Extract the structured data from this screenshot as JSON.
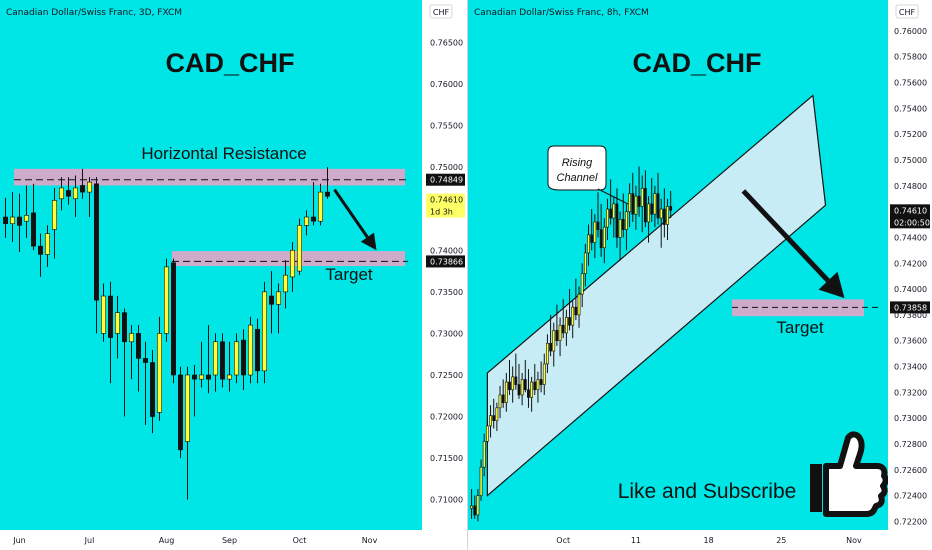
{
  "colors": {
    "bg": "#00e5e5",
    "bull": "#ffff33",
    "bear": "#111111",
    "zone": "#d9a8c8",
    "channel": "#c8ecf6",
    "label_bg": "#111111",
    "current_bg": "#ffff66",
    "axis_bg": "#ffffff"
  },
  "chart_data": [
    {
      "type": "candlestick",
      "header": "Canadian Dollar/Swiss Franc, 3D, FXCM",
      "currency": "CHF",
      "title": "CAD_CHF",
      "ylim": [
        0.709,
        0.7665
      ],
      "y_ticks": [
        "0.76500",
        "0.76000",
        "0.75500",
        "0.75000",
        "0.74500",
        "0.74000",
        "0.73500",
        "0.73000",
        "0.72500",
        "0.72000",
        "0.71500",
        "0.71000"
      ],
      "x_labels": [
        {
          "label": "Jun",
          "index": 2
        },
        {
          "label": "Jul",
          "index": 12
        },
        {
          "label": "Aug",
          "index": 23
        },
        {
          "label": "Sep",
          "index": 32
        },
        {
          "label": "Oct",
          "index": 42
        },
        {
          "label": "Nov",
          "index": 52
        }
      ],
      "n_slots": 58,
      "annotations": {
        "resistance_label": "Horizontal Resistance",
        "resistance_level": 0.74849,
        "resistance_price": "0.74849",
        "target_label": "Target",
        "target_level": 0.73866,
        "target_price": "0.73866",
        "current_price": "0.74610",
        "current_countdown": "1d 3h"
      },
      "zones": [
        {
          "name": "resistance",
          "y_top": 0.7498,
          "y_bottom": 0.7478
        },
        {
          "name": "target",
          "y_top": 0.7399,
          "y_bottom": 0.7381
        }
      ],
      "arrow": {
        "from": [
          47,
          0.7473
        ],
        "to": [
          53,
          0.74
        ]
      },
      "candles": [
        {
          "i": 0,
          "o": 0.744,
          "h": 0.7463,
          "l": 0.7415,
          "c": 0.7432
        },
        {
          "i": 1,
          "o": 0.7432,
          "h": 0.747,
          "l": 0.741,
          "c": 0.744
        },
        {
          "i": 2,
          "o": 0.744,
          "h": 0.7468,
          "l": 0.7398,
          "c": 0.743
        },
        {
          "i": 3,
          "o": 0.7435,
          "h": 0.7478,
          "l": 0.7415,
          "c": 0.7442
        },
        {
          "i": 4,
          "o": 0.7445,
          "h": 0.748,
          "l": 0.74,
          "c": 0.7405
        },
        {
          "i": 5,
          "o": 0.7405,
          "h": 0.742,
          "l": 0.7368,
          "c": 0.7395
        },
        {
          "i": 6,
          "o": 0.7395,
          "h": 0.743,
          "l": 0.738,
          "c": 0.742
        },
        {
          "i": 7,
          "o": 0.7425,
          "h": 0.7475,
          "l": 0.739,
          "c": 0.746
        },
        {
          "i": 8,
          "o": 0.7462,
          "h": 0.7488,
          "l": 0.7448,
          "c": 0.7475
        },
        {
          "i": 9,
          "o": 0.7472,
          "h": 0.7488,
          "l": 0.7455,
          "c": 0.7465
        },
        {
          "i": 10,
          "o": 0.7462,
          "h": 0.749,
          "l": 0.744,
          "c": 0.7475
        },
        {
          "i": 11,
          "o": 0.7478,
          "h": 0.7498,
          "l": 0.7462,
          "c": 0.747
        },
        {
          "i": 12,
          "o": 0.747,
          "h": 0.7488,
          "l": 0.744,
          "c": 0.7482
        },
        {
          "i": 13,
          "o": 0.748,
          "h": 0.7488,
          "l": 0.73,
          "c": 0.734
        },
        {
          "i": 14,
          "o": 0.73,
          "h": 0.736,
          "l": 0.729,
          "c": 0.7345
        },
        {
          "i": 15,
          "o": 0.7345,
          "h": 0.7362,
          "l": 0.724,
          "c": 0.7295
        },
        {
          "i": 16,
          "o": 0.73,
          "h": 0.7345,
          "l": 0.727,
          "c": 0.7325
        },
        {
          "i": 17,
          "o": 0.7325,
          "h": 0.733,
          "l": 0.72,
          "c": 0.729
        },
        {
          "i": 18,
          "o": 0.729,
          "h": 0.731,
          "l": 0.7245,
          "c": 0.73
        },
        {
          "i": 19,
          "o": 0.73,
          "h": 0.731,
          "l": 0.723,
          "c": 0.727
        },
        {
          "i": 20,
          "o": 0.727,
          "h": 0.729,
          "l": 0.719,
          "c": 0.7265
        },
        {
          "i": 21,
          "o": 0.7265,
          "h": 0.728,
          "l": 0.718,
          "c": 0.72
        },
        {
          "i": 22,
          "o": 0.7205,
          "h": 0.732,
          "l": 0.7195,
          "c": 0.73
        },
        {
          "i": 23,
          "o": 0.73,
          "h": 0.739,
          "l": 0.729,
          "c": 0.738
        },
        {
          "i": 24,
          "o": 0.7385,
          "h": 0.739,
          "l": 0.724,
          "c": 0.725
        },
        {
          "i": 25,
          "o": 0.725,
          "h": 0.726,
          "l": 0.715,
          "c": 0.716
        },
        {
          "i": 26,
          "o": 0.717,
          "h": 0.726,
          "l": 0.71,
          "c": 0.725
        },
        {
          "i": 27,
          "o": 0.725,
          "h": 0.7262,
          "l": 0.72,
          "c": 0.7245
        },
        {
          "i": 28,
          "o": 0.7245,
          "h": 0.729,
          "l": 0.7235,
          "c": 0.725
        },
        {
          "i": 29,
          "o": 0.725,
          "h": 0.731,
          "l": 0.7228,
          "c": 0.7245
        },
        {
          "i": 30,
          "o": 0.725,
          "h": 0.73,
          "l": 0.723,
          "c": 0.729
        },
        {
          "i": 31,
          "o": 0.729,
          "h": 0.73,
          "l": 0.7235,
          "c": 0.7245
        },
        {
          "i": 32,
          "o": 0.7245,
          "h": 0.729,
          "l": 0.723,
          "c": 0.725
        },
        {
          "i": 33,
          "o": 0.725,
          "h": 0.73,
          "l": 0.724,
          "c": 0.729
        },
        {
          "i": 34,
          "o": 0.7292,
          "h": 0.7305,
          "l": 0.7232,
          "c": 0.725
        },
        {
          "i": 35,
          "o": 0.725,
          "h": 0.732,
          "l": 0.724,
          "c": 0.731
        },
        {
          "i": 36,
          "o": 0.7305,
          "h": 0.7318,
          "l": 0.724,
          "c": 0.7255
        },
        {
          "i": 37,
          "o": 0.7255,
          "h": 0.7362,
          "l": 0.724,
          "c": 0.735
        },
        {
          "i": 38,
          "o": 0.7345,
          "h": 0.7375,
          "l": 0.73,
          "c": 0.7335
        },
        {
          "i": 39,
          "o": 0.7335,
          "h": 0.736,
          "l": 0.73,
          "c": 0.735
        },
        {
          "i": 40,
          "o": 0.735,
          "h": 0.7388,
          "l": 0.733,
          "c": 0.737
        },
        {
          "i": 41,
          "o": 0.7368,
          "h": 0.741,
          "l": 0.735,
          "c": 0.74
        },
        {
          "i": 42,
          "o": 0.7375,
          "h": 0.7438,
          "l": 0.737,
          "c": 0.743
        },
        {
          "i": 43,
          "o": 0.743,
          "h": 0.7448,
          "l": 0.7418,
          "c": 0.744
        },
        {
          "i": 44,
          "o": 0.744,
          "h": 0.7482,
          "l": 0.743,
          "c": 0.7435
        },
        {
          "i": 45,
          "o": 0.7435,
          "h": 0.748,
          "l": 0.743,
          "c": 0.747
        },
        {
          "i": 46,
          "o": 0.747,
          "h": 0.75,
          "l": 0.7462,
          "c": 0.7465
        }
      ]
    },
    {
      "type": "candlestick",
      "header": "Canadian Dollar/Swiss Franc, 8h, FXCM",
      "currency": "CHF",
      "title": "CAD_CHF",
      "ylim": [
        0.7218,
        0.761
      ],
      "y_ticks": [
        "0.76000",
        "0.75800",
        "0.75600",
        "0.75400",
        "0.75200",
        "0.75000",
        "0.74800",
        "0.74600",
        "0.74400",
        "0.74200",
        "0.74000",
        "0.73800",
        "0.73600",
        "0.73400",
        "0.73200",
        "0.73000",
        "0.72800",
        "0.72600",
        "0.72400",
        "0.72200"
      ],
      "x_labels": [
        {
          "label": "Oct",
          "index": 29
        },
        {
          "label": "11",
          "index": 52
        },
        {
          "label": "18",
          "index": 75
        },
        {
          "label": "25",
          "index": 98
        },
        {
          "label": "Nov",
          "index": 121
        }
      ],
      "n_slots": 131,
      "annotations": {
        "callout": "Rising Channel",
        "target_label": "Target",
        "target_level": 0.73858,
        "target_price": "0.73858",
        "current_price": "0.74610",
        "current_countdown": "02:00:50",
        "cta": "Like and Subscribe"
      },
      "zones": [
        {
          "name": "target",
          "y_top": 0.7392,
          "y_bottom": 0.7379
        }
      ],
      "channel": {
        "upper": [
          [
            5,
            0.7335
          ],
          [
            108,
            0.755
          ]
        ],
        "lower": [
          [
            5,
            0.724
          ],
          [
            112,
            0.7465
          ]
        ]
      },
      "arrow": {
        "from": [
          86,
          0.7476
        ],
        "to": [
          118,
          0.7393
        ]
      },
      "candles": [
        {
          "i": 0,
          "o": 0.723,
          "h": 0.7245,
          "l": 0.7222,
          "c": 0.7232
        },
        {
          "i": 1,
          "o": 0.7232,
          "h": 0.724,
          "l": 0.7222,
          "c": 0.7225
        },
        {
          "i": 2,
          "o": 0.7225,
          "h": 0.7245,
          "l": 0.722,
          "c": 0.724
        },
        {
          "i": 3,
          "o": 0.724,
          "h": 0.7268,
          "l": 0.7236,
          "c": 0.7262
        },
        {
          "i": 4,
          "o": 0.7262,
          "h": 0.7288,
          "l": 0.7255,
          "c": 0.7282
        },
        {
          "i": 5,
          "o": 0.7282,
          "h": 0.73,
          "l": 0.7275,
          "c": 0.7294
        },
        {
          "i": 6,
          "o": 0.7294,
          "h": 0.731,
          "l": 0.7285,
          "c": 0.7302
        },
        {
          "i": 7,
          "o": 0.7302,
          "h": 0.7315,
          "l": 0.7292,
          "c": 0.7298
        },
        {
          "i": 8,
          "o": 0.7298,
          "h": 0.7312,
          "l": 0.729,
          "c": 0.7308
        },
        {
          "i": 9,
          "o": 0.7308,
          "h": 0.7325,
          "l": 0.73,
          "c": 0.7318
        },
        {
          "i": 10,
          "o": 0.7318,
          "h": 0.733,
          "l": 0.7308,
          "c": 0.7312
        },
        {
          "i": 11,
          "o": 0.7312,
          "h": 0.7335,
          "l": 0.7305,
          "c": 0.7328
        },
        {
          "i": 12,
          "o": 0.7328,
          "h": 0.7345,
          "l": 0.7318,
          "c": 0.7322
        },
        {
          "i": 13,
          "o": 0.7322,
          "h": 0.734,
          "l": 0.7312,
          "c": 0.7332
        },
        {
          "i": 14,
          "o": 0.7332,
          "h": 0.735,
          "l": 0.7322,
          "c": 0.7326
        },
        {
          "i": 15,
          "o": 0.7326,
          "h": 0.7342,
          "l": 0.7315,
          "c": 0.7318
        },
        {
          "i": 16,
          "o": 0.7318,
          "h": 0.7335,
          "l": 0.731,
          "c": 0.733
        },
        {
          "i": 17,
          "o": 0.733,
          "h": 0.7345,
          "l": 0.732,
          "c": 0.7322
        },
        {
          "i": 18,
          "o": 0.7322,
          "h": 0.7338,
          "l": 0.7308,
          "c": 0.7316
        },
        {
          "i": 19,
          "o": 0.7316,
          "h": 0.7332,
          "l": 0.7305,
          "c": 0.7328
        },
        {
          "i": 20,
          "o": 0.7328,
          "h": 0.7342,
          "l": 0.7318,
          "c": 0.7322
        },
        {
          "i": 21,
          "o": 0.7322,
          "h": 0.7336,
          "l": 0.7312,
          "c": 0.733
        },
        {
          "i": 22,
          "o": 0.733,
          "h": 0.7344,
          "l": 0.732,
          "c": 0.7326
        },
        {
          "i": 23,
          "o": 0.7326,
          "h": 0.735,
          "l": 0.7318,
          "c": 0.7342
        },
        {
          "i": 24,
          "o": 0.7342,
          "h": 0.7365,
          "l": 0.7335,
          "c": 0.7358
        },
        {
          "i": 25,
          "o": 0.7358,
          "h": 0.738,
          "l": 0.7348,
          "c": 0.7352
        },
        {
          "i": 26,
          "o": 0.7352,
          "h": 0.7374,
          "l": 0.734,
          "c": 0.7368
        },
        {
          "i": 27,
          "o": 0.7368,
          "h": 0.7388,
          "l": 0.7356,
          "c": 0.736
        },
        {
          "i": 28,
          "o": 0.736,
          "h": 0.7378,
          "l": 0.7348,
          "c": 0.7372
        },
        {
          "i": 29,
          "o": 0.7372,
          "h": 0.7392,
          "l": 0.7362,
          "c": 0.7366
        },
        {
          "i": 30,
          "o": 0.7366,
          "h": 0.7384,
          "l": 0.7356,
          "c": 0.7378
        },
        {
          "i": 31,
          "o": 0.7378,
          "h": 0.74,
          "l": 0.7368,
          "c": 0.7372
        },
        {
          "i": 32,
          "o": 0.7372,
          "h": 0.7392,
          "l": 0.7362,
          "c": 0.7386
        },
        {
          "i": 33,
          "o": 0.7386,
          "h": 0.7408,
          "l": 0.7376,
          "c": 0.738
        },
        {
          "i": 34,
          "o": 0.738,
          "h": 0.7402,
          "l": 0.737,
          "c": 0.7396
        },
        {
          "i": 35,
          "o": 0.7396,
          "h": 0.742,
          "l": 0.7386,
          "c": 0.7412
        },
        {
          "i": 36,
          "o": 0.7412,
          "h": 0.7435,
          "l": 0.7402,
          "c": 0.7428
        },
        {
          "i": 37,
          "o": 0.7428,
          "h": 0.745,
          "l": 0.7418,
          "c": 0.7442
        },
        {
          "i": 38,
          "o": 0.7442,
          "h": 0.7462,
          "l": 0.743,
          "c": 0.7436
        },
        {
          "i": 39,
          "o": 0.7436,
          "h": 0.7458,
          "l": 0.7424,
          "c": 0.7452
        },
        {
          "i": 40,
          "o": 0.7452,
          "h": 0.7475,
          "l": 0.744,
          "c": 0.7446
        },
        {
          "i": 41,
          "o": 0.7446,
          "h": 0.7466,
          "l": 0.7425,
          "c": 0.7432
        },
        {
          "i": 42,
          "o": 0.7432,
          "h": 0.7455,
          "l": 0.742,
          "c": 0.7448
        },
        {
          "i": 43,
          "o": 0.7448,
          "h": 0.747,
          "l": 0.7438,
          "c": 0.7462
        },
        {
          "i": 44,
          "o": 0.7462,
          "h": 0.7485,
          "l": 0.745,
          "c": 0.7455
        },
        {
          "i": 45,
          "o": 0.7455,
          "h": 0.7472,
          "l": 0.744,
          "c": 0.7466
        },
        {
          "i": 46,
          "o": 0.7466,
          "h": 0.7478,
          "l": 0.7432,
          "c": 0.744
        },
        {
          "i": 47,
          "o": 0.744,
          "h": 0.746,
          "l": 0.7422,
          "c": 0.7454
        },
        {
          "i": 48,
          "o": 0.7454,
          "h": 0.7474,
          "l": 0.744,
          "c": 0.7446
        },
        {
          "i": 49,
          "o": 0.7446,
          "h": 0.7466,
          "l": 0.743,
          "c": 0.746
        },
        {
          "i": 50,
          "o": 0.746,
          "h": 0.7482,
          "l": 0.7448,
          "c": 0.7474
        },
        {
          "i": 51,
          "o": 0.7474,
          "h": 0.749,
          "l": 0.7452,
          "c": 0.7458
        },
        {
          "i": 52,
          "o": 0.7458,
          "h": 0.748,
          "l": 0.7446,
          "c": 0.7472
        },
        {
          "i": 53,
          "o": 0.7472,
          "h": 0.7495,
          "l": 0.7456,
          "c": 0.7464
        },
        {
          "i": 54,
          "o": 0.7464,
          "h": 0.7488,
          "l": 0.7444,
          "c": 0.7478
        },
        {
          "i": 55,
          "o": 0.7478,
          "h": 0.7492,
          "l": 0.7448,
          "c": 0.7452
        },
        {
          "i": 56,
          "o": 0.7452,
          "h": 0.7472,
          "l": 0.7436,
          "c": 0.7466
        },
        {
          "i": 57,
          "o": 0.7466,
          "h": 0.7486,
          "l": 0.7452,
          "c": 0.7458
        },
        {
          "i": 58,
          "o": 0.7458,
          "h": 0.748,
          "l": 0.7448,
          "c": 0.7474
        },
        {
          "i": 59,
          "o": 0.7474,
          "h": 0.749,
          "l": 0.745,
          "c": 0.7455
        },
        {
          "i": 60,
          "o": 0.7455,
          "h": 0.747,
          "l": 0.7432,
          "c": 0.7462
        },
        {
          "i": 61,
          "o": 0.7462,
          "h": 0.7478,
          "l": 0.744,
          "c": 0.745
        },
        {
          "i": 62,
          "o": 0.745,
          "h": 0.747,
          "l": 0.7438,
          "c": 0.7464
        },
        {
          "i": 63,
          "o": 0.7464,
          "h": 0.7476,
          "l": 0.7455,
          "c": 0.7461
        }
      ]
    }
  ]
}
